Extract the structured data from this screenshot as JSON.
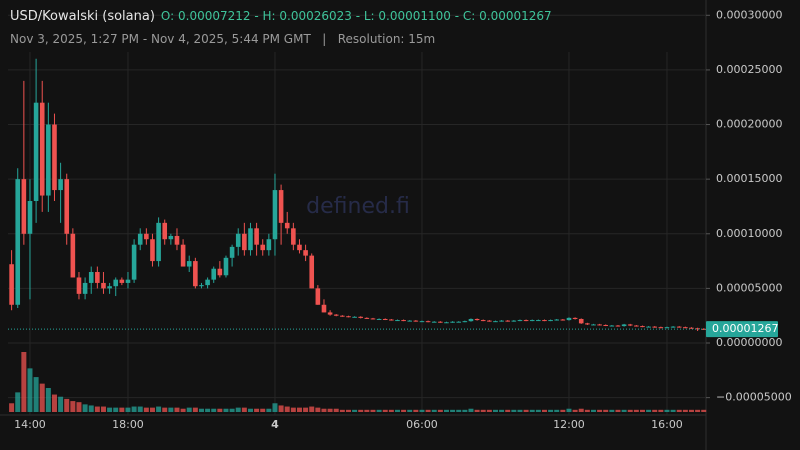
{
  "header": {
    "title": "USD/Kowalski (solana)",
    "ohlc": "O: 0.00007212 - H: 0.00026023 - L: 0.00001100 - C: 0.00001267",
    "subtitle": "Nov 3, 2025, 1:27 PM - Nov 4, 2025, 5:44 PM GMT   |   Resolution: 15m"
  },
  "watermark": "defined.fi",
  "chart_data": {
    "type": "candlestick",
    "x": [
      "2025-11-03 13:15",
      "2025-11-03 13:30",
      "2025-11-03 13:45",
      "2025-11-03 14:00",
      "2025-11-03 14:15",
      "2025-11-03 14:30",
      "2025-11-03 14:45",
      "2025-11-03 15:00",
      "2025-11-03 15:15",
      "2025-11-03 15:30",
      "2025-11-03 15:45",
      "2025-11-03 16:00",
      "2025-11-03 16:15",
      "2025-11-03 16:30",
      "2025-11-03 16:45",
      "2025-11-03 17:00",
      "2025-11-03 17:15",
      "2025-11-03 17:30",
      "2025-11-03 17:45",
      "2025-11-03 18:00",
      "2025-11-03 18:15",
      "2025-11-03 18:30",
      "2025-11-03 18:45",
      "2025-11-03 19:00",
      "2025-11-03 19:15",
      "2025-11-03 19:30",
      "2025-11-03 19:45",
      "2025-11-03 20:00",
      "2025-11-03 20:15",
      "2025-11-03 20:30",
      "2025-11-03 20:45",
      "2025-11-03 21:00",
      "2025-11-03 21:15",
      "2025-11-03 21:30",
      "2025-11-03 21:45",
      "2025-11-03 22:00",
      "2025-11-03 22:15",
      "2025-11-03 22:30",
      "2025-11-03 22:45",
      "2025-11-03 23:00",
      "2025-11-03 23:15",
      "2025-11-03 23:30",
      "2025-11-03 23:45",
      "2025-11-04 00:00",
      "2025-11-04 00:15",
      "2025-11-04 00:30",
      "2025-11-04 00:45",
      "2025-11-04 01:00",
      "2025-11-04 01:15",
      "2025-11-04 01:30",
      "2025-11-04 01:45",
      "2025-11-04 02:00",
      "2025-11-04 02:15",
      "2025-11-04 02:30",
      "2025-11-04 02:45",
      "2025-11-04 03:00",
      "2025-11-04 03:15",
      "2025-11-04 03:30",
      "2025-11-04 03:45",
      "2025-11-04 04:00",
      "2025-11-04 04:15",
      "2025-11-04 04:30",
      "2025-11-04 04:45",
      "2025-11-04 05:00",
      "2025-11-04 05:15",
      "2025-11-04 05:30",
      "2025-11-04 05:45",
      "2025-11-04 06:00",
      "2025-11-04 06:15",
      "2025-11-04 06:30",
      "2025-11-04 06:45",
      "2025-11-04 07:00",
      "2025-11-04 07:15",
      "2025-11-04 07:30",
      "2025-11-04 07:45",
      "2025-11-04 08:00",
      "2025-11-04 08:15",
      "2025-11-04 08:30",
      "2025-11-04 08:45",
      "2025-11-04 09:00",
      "2025-11-04 09:15",
      "2025-11-04 09:30",
      "2025-11-04 09:45",
      "2025-11-04 10:00",
      "2025-11-04 10:15",
      "2025-11-04 10:30",
      "2025-11-04 10:45",
      "2025-11-04 11:00",
      "2025-11-04 11:15",
      "2025-11-04 11:30",
      "2025-11-04 11:45",
      "2025-11-04 12:00",
      "2025-11-04 12:15",
      "2025-11-04 12:30",
      "2025-11-04 12:45",
      "2025-11-04 13:00",
      "2025-11-04 13:15",
      "2025-11-04 13:30",
      "2025-11-04 13:45",
      "2025-11-04 14:00",
      "2025-11-04 14:15",
      "2025-11-04 14:30",
      "2025-11-04 14:45",
      "2025-11-04 15:00",
      "2025-11-04 15:15",
      "2025-11-04 15:30",
      "2025-11-04 15:45",
      "2025-11-04 16:00",
      "2025-11-04 16:15",
      "2025-11-04 16:30",
      "2025-11-04 16:45",
      "2025-11-04 17:00",
      "2025-11-04 17:15",
      "2025-11-04 17:30"
    ],
    "open": [
      7.212e-05,
      3.5e-05,
      0.00015,
      0.0001,
      0.00013,
      0.00022,
      0.000135,
      0.0002,
      0.00014,
      0.00015,
      0.0001,
      6e-05,
      4.5e-05,
      5.5e-05,
      6.5e-05,
      5.5e-05,
      5e-05,
      5.2e-05,
      5.8e-05,
      5.5e-05,
      5.8e-05,
      9e-05,
      0.0001,
      9.5e-05,
      7.5e-05,
      0.00011,
      9.5e-05,
      9.8e-05,
      9e-05,
      7e-05,
      7.5e-05,
      5.2e-05,
      5.3e-05,
      5.8e-05,
      6.8e-05,
      6.2e-05,
      7.8e-05,
      8.8e-05,
      0.0001,
      8.5e-05,
      0.000105,
      9e-05,
      8.5e-05,
      9.5e-05,
      0.00014,
      0.00011,
      0.000105,
      9e-05,
      8.5e-05,
      8e-05,
      5e-05,
      3.5e-05,
      2.8e-05,
      2.6e-05,
      2.5e-05,
      2.45e-05,
      2.4e-05,
      2.4e-05,
      2.3e-05,
      2.25e-05,
      2.2e-05,
      2.2e-05,
      2.15e-05,
      2.1e-05,
      2.1e-05,
      2.05e-05,
      2.05e-05,
      2e-05,
      2e-05,
      1.95e-05,
      1.95e-05,
      1.9e-05,
      1.9e-05,
      1.95e-05,
      1.95e-05,
      2e-05,
      2.2e-05,
      2.1e-05,
      2.05e-05,
      2e-05,
      2e-05,
      2.05e-05,
      2e-05,
      2.05e-05,
      2.1e-05,
      2.05e-05,
      2.1e-05,
      2.1e-05,
      2.05e-05,
      2.1e-05,
      2.15e-05,
      2.1e-05,
      2.3e-05,
      2.2e-05,
      1.8e-05,
      1.7e-05,
      1.7e-05,
      1.65e-05,
      1.6e-05,
      1.6e-05,
      1.55e-05,
      1.7e-05,
      1.6e-05,
      1.55e-05,
      1.5e-05,
      1.5e-05,
      1.45e-05,
      1.4e-05,
      1.45e-05,
      1.5e-05,
      1.45e-05,
      1.4e-05,
      1.35e-05,
      1.3e-05
    ],
    "high": [
      8.5e-05,
      0.00016,
      0.00024,
      0.00015,
      0.00026023,
      0.00024,
      0.00022,
      0.00021,
      0.000165,
      0.000155,
      0.000105,
      6.5e-05,
      6e-05,
      7e-05,
      7e-05,
      6.5e-05,
      5.5e-05,
      6e-05,
      6e-05,
      6.5e-05,
      9.5e-05,
      0.000105,
      0.000105,
      0.0001,
      0.000115,
      0.000113,
      0.0001,
      0.000105,
      9.5e-05,
      8e-05,
      7.8e-05,
      5.5e-05,
      6e-05,
      7e-05,
      7.5e-05,
      8e-05,
      9e-05,
      0.000105,
      0.00011,
      0.00011,
      0.00011,
      9.5e-05,
      0.0001,
      0.000155,
      0.000145,
      0.00012,
      0.00011,
      9.5e-05,
      9e-05,
      8.2e-05,
      5.3e-05,
      4e-05,
      3e-05,
      2.65e-05,
      2.55e-05,
      2.5e-05,
      2.45e-05,
      2.45e-05,
      2.35e-05,
      2.3e-05,
      2.25e-05,
      2.25e-05,
      2.2e-05,
      2.15e-05,
      2.15e-05,
      2.1e-05,
      2.1e-05,
      2.05e-05,
      2.05e-05,
      2e-05,
      2e-05,
      1.95e-05,
      2e-05,
      2e-05,
      2.05e-05,
      2.25e-05,
      2.25e-05,
      2.15e-05,
      2.1e-05,
      2.05e-05,
      2.1e-05,
      2.1e-05,
      2.1e-05,
      2.15e-05,
      2.15e-05,
      2.15e-05,
      2.15e-05,
      2.15e-05,
      2.15e-05,
      2.2e-05,
      2.2e-05,
      2.35e-05,
      2.35e-05,
      2.25e-05,
      1.85e-05,
      1.75e-05,
      1.75e-05,
      1.7e-05,
      1.65e-05,
      1.65e-05,
      1.75e-05,
      1.75e-05,
      1.65e-05,
      1.6e-05,
      1.55e-05,
      1.55e-05,
      1.5e-05,
      1.5e-05,
      1.55e-05,
      1.55e-05,
      1.5e-05,
      1.45e-05,
      1.4e-05,
      1.35e-05
    ],
    "low": [
      3e-05,
      3.2e-05,
      9e-05,
      4e-05,
      0.00011,
      0.00012,
      0.00012,
      0.00013,
      0.00011,
      9e-05,
      6e-05,
      4e-05,
      4e-05,
      4.5e-05,
      5e-05,
      4.5e-05,
      4.5e-05,
      4.3e-05,
      5.3e-05,
      5e-05,
      5.5e-05,
      8.5e-05,
      9e-05,
      7e-05,
      7e-05,
      9e-05,
      9e-05,
      8.5e-05,
      7e-05,
      6.5e-05,
      5e-05,
      5e-05,
      5e-05,
      5.5e-05,
      6e-05,
      6e-05,
      7e-05,
      8e-05,
      8e-05,
      8e-05,
      8e-05,
      8e-05,
      8e-05,
      8e-05,
      9e-05,
      0.0001,
      8.5e-05,
      8.2e-05,
      7.5e-05,
      5e-05,
      3.5e-05,
      2.8e-05,
      2.5e-05,
      2.45e-05,
      2.4e-05,
      2.35e-05,
      2.35e-05,
      2.25e-05,
      2.2e-05,
      2.15e-05,
      2.15e-05,
      2.1e-05,
      2.05e-05,
      2.05e-05,
      2e-05,
      2e-05,
      1.95e-05,
      1.95e-05,
      1.9e-05,
      1.9e-05,
      1.85e-05,
      1.85e-05,
      1.85e-05,
      1.9e-05,
      1.9e-05,
      1.95e-05,
      2.05e-05,
      2e-05,
      1.95e-05,
      1.95e-05,
      1.95e-05,
      1.95e-05,
      1.95e-05,
      2e-05,
      2e-05,
      2e-05,
      2.05e-05,
      2e-05,
      2e-05,
      2.05e-05,
      2.05e-05,
      2.05e-05,
      2.15e-05,
      1.75e-05,
      1.65e-05,
      1.65e-05,
      1.6e-05,
      1.55e-05,
      1.55e-05,
      1.5e-05,
      1.5e-05,
      1.55e-05,
      1.5e-05,
      1.45e-05,
      1.45e-05,
      1.4e-05,
      1.35e-05,
      1.35e-05,
      1.4e-05,
      1.4e-05,
      1.35e-05,
      1.3e-05,
      1.1e-05,
      1.2e-05
    ],
    "close": [
      3.5e-05,
      0.00015,
      0.0001,
      0.00013,
      0.00022,
      0.000135,
      0.0002,
      0.00014,
      0.00015,
      0.0001,
      6e-05,
      4.5e-05,
      5.5e-05,
      6.5e-05,
      5.5e-05,
      5e-05,
      5.2e-05,
      5.8e-05,
      5.5e-05,
      5.8e-05,
      9e-05,
      0.0001,
      9.5e-05,
      7.5e-05,
      0.00011,
      9.5e-05,
      9.8e-05,
      9e-05,
      7e-05,
      7.5e-05,
      5.2e-05,
      5.3e-05,
      5.8e-05,
      6.8e-05,
      6.2e-05,
      7.8e-05,
      8.8e-05,
      0.0001,
      8.5e-05,
      0.000105,
      9e-05,
      8.5e-05,
      9.5e-05,
      0.00014,
      0.00011,
      0.000105,
      9e-05,
      8.5e-05,
      8e-05,
      5e-05,
      3.5e-05,
      2.8e-05,
      2.6e-05,
      2.5e-05,
      2.45e-05,
      2.4e-05,
      2.4e-05,
      2.3e-05,
      2.25e-05,
      2.2e-05,
      2.2e-05,
      2.15e-05,
      2.1e-05,
      2.1e-05,
      2.05e-05,
      2.05e-05,
      2e-05,
      2e-05,
      1.95e-05,
      1.95e-05,
      1.9e-05,
      1.9e-05,
      1.95e-05,
      1.95e-05,
      2e-05,
      2.2e-05,
      2.1e-05,
      2.05e-05,
      2e-05,
      2e-05,
      2.05e-05,
      2e-05,
      2.05e-05,
      2.1e-05,
      2.05e-05,
      2.1e-05,
      2.1e-05,
      2.05e-05,
      2.1e-05,
      2.15e-05,
      2.1e-05,
      2.3e-05,
      2.2e-05,
      1.8e-05,
      1.7e-05,
      1.7e-05,
      1.65e-05,
      1.6e-05,
      1.6e-05,
      1.55e-05,
      1.7e-05,
      1.6e-05,
      1.55e-05,
      1.5e-05,
      1.5e-05,
      1.45e-05,
      1.4e-05,
      1.45e-05,
      1.5e-05,
      1.45e-05,
      1.4e-05,
      1.35e-05,
      1.3e-05,
      1.267e-05
    ],
    "volume": [
      8,
      18,
      55,
      40,
      32,
      26,
      22,
      16,
      14,
      12,
      10,
      9,
      7,
      6,
      5,
      5,
      4,
      4,
      4,
      4,
      5,
      5,
      4,
      4,
      5,
      4,
      4,
      4,
      3,
      4,
      4,
      3,
      3,
      3,
      3,
      3,
      3,
      4,
      4,
      3,
      3,
      3,
      3,
      8,
      6,
      5,
      4,
      4,
      4,
      5,
      4,
      3,
      3,
      3,
      2,
      2,
      2,
      2,
      2,
      2,
      2,
      2,
      2,
      2,
      2,
      2,
      2,
      2,
      2,
      2,
      2,
      2,
      2,
      2,
      2,
      3,
      2,
      2,
      2,
      2,
      2,
      2,
      2,
      2,
      2,
      2,
      2,
      2,
      2,
      2,
      2,
      3,
      2,
      3,
      2,
      2,
      2,
      2,
      2,
      2,
      2,
      2,
      2,
      2,
      2,
      2,
      2,
      2,
      2,
      2,
      2,
      2,
      2,
      2
    ],
    "up_color": "#26a69a",
    "down_color": "#ef5350",
    "last_price": 1.267e-05,
    "ylim": [
      -6.59e-05,
      0.000314
    ],
    "yticks": [
      {
        "value": 0.0003,
        "label": "0.00030000"
      },
      {
        "value": 0.00025,
        "label": "0.00025000"
      },
      {
        "value": 0.0002,
        "label": "0.00020000"
      },
      {
        "value": 0.00015,
        "label": "0.00015000"
      },
      {
        "value": 0.0001,
        "label": "0.00010000"
      },
      {
        "value": 5e-05,
        "label": "0.00005000"
      },
      {
        "value": 0,
        "label": "0.00000000"
      },
      {
        "value": -5e-05,
        "label": "−0.00005000"
      }
    ],
    "xticks": [
      {
        "value": "2025-11-03 14:00",
        "label": "14:00"
      },
      {
        "value": "2025-11-03 18:00",
        "label": "18:00"
      },
      {
        "value": "2025-11-04 00:00",
        "label": "4"
      },
      {
        "value": "2025-11-04 06:00",
        "label": "06:00"
      },
      {
        "value": "2025-11-04 12:00",
        "label": "12:00"
      },
      {
        "value": "2025-11-04 16:00",
        "label": "16:00"
      }
    ],
    "grid": true
  }
}
